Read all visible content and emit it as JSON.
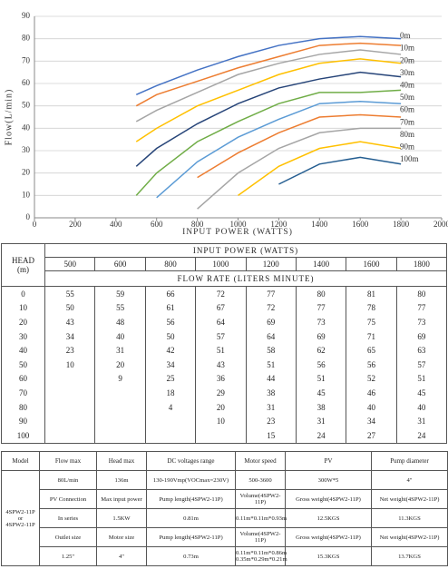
{
  "chart_data": {
    "type": "line",
    "x_label": "INPUT POWER (WATTS)",
    "y_label": "Flow(L/min)",
    "x": [
      500,
      600,
      800,
      1000,
      1200,
      1400,
      1600,
      1800
    ],
    "xlim": [
      0,
      2000
    ],
    "xticks": [
      0,
      200,
      400,
      600,
      800,
      1000,
      1200,
      1400,
      1600,
      1800,
      2000
    ],
    "ylim": [
      0,
      90
    ],
    "yticks": [
      0,
      10,
      20,
      30,
      40,
      50,
      60,
      70,
      80,
      90
    ],
    "grid": true,
    "series": [
      {
        "name": "0m",
        "color": "#4472c4",
        "values": [
          55,
          59,
          66,
          72,
          77,
          80,
          81,
          80
        ]
      },
      {
        "name": "10m",
        "color": "#ed7d31",
        "values": [
          50,
          55,
          61,
          67,
          72,
          77,
          78,
          77
        ]
      },
      {
        "name": "20m",
        "color": "#a5a5a5",
        "values": [
          43,
          48,
          56,
          64,
          69,
          73,
          75,
          73
        ]
      },
      {
        "name": "30m",
        "color": "#ffc000",
        "values": [
          34,
          40,
          50,
          57,
          64,
          69,
          71,
          69
        ]
      },
      {
        "name": "40m",
        "color": "#264478",
        "values": [
          23,
          31,
          42,
          51,
          58,
          62,
          65,
          63
        ]
      },
      {
        "name": "50m",
        "color": "#70ad47",
        "values": [
          10,
          20,
          34,
          43,
          51,
          56,
          56,
          57
        ]
      },
      {
        "name": "60m",
        "color": "#5b9bd5",
        "values": [
          null,
          9,
          25,
          36,
          44,
          51,
          52,
          51
        ]
      },
      {
        "name": "70m",
        "color": "#ed7d31",
        "values": [
          null,
          null,
          18,
          29,
          38,
          45,
          46,
          45
        ]
      },
      {
        "name": "80m",
        "color": "#a5a5a5",
        "values": [
          null,
          null,
          4,
          20,
          31,
          38,
          40,
          40
        ]
      },
      {
        "name": "90m",
        "color": "#ffc000",
        "values": [
          null,
          null,
          null,
          10,
          23,
          31,
          34,
          31
        ]
      },
      {
        "name": "100m",
        "color": "#255e91",
        "values": [
          null,
          null,
          null,
          null,
          15,
          24,
          27,
          24
        ]
      }
    ]
  },
  "flow_table": {
    "head_label": [
      "HEAD",
      "(m)"
    ],
    "title": "INPUT POWER (WATTS)",
    "subtitle": "FLOW RATE (LITERS MINUTE)",
    "heads": [
      0,
      10,
      20,
      30,
      40,
      50,
      60,
      70,
      80,
      90,
      100
    ]
  },
  "spec_table": {
    "header": [
      "Model",
      "Flow max",
      "Head max",
      "DC voltages range",
      "Motor speed",
      "PV",
      "Pump diameter"
    ],
    "model": [
      "4SPW2-11P",
      "or",
      "4SPW2-11P"
    ],
    "rows": [
      [
        [
          "80L/min"
        ],
        [
          "136m"
        ],
        [
          "130-190Vmp(VOCmax=230V)"
        ],
        [
          "500-3600"
        ],
        [
          "300W*5"
        ],
        [
          "4\""
        ]
      ],
      [
        [
          "PV Connection"
        ],
        [
          "Max input power"
        ],
        [
          "Pump length(4SPW2-11P)"
        ],
        [
          "Volume(4SPW2-11P)"
        ],
        [
          "Gross weight(4SPW2-11P)"
        ],
        [
          "Net weight(4SPW2-11P)"
        ]
      ],
      [
        [
          "In series"
        ],
        [
          "1.5KW"
        ],
        [
          "0.81m"
        ],
        [
          "0.11m*0.11m*0.93m"
        ],
        [
          "12.5KGS"
        ],
        [
          "11.3KGS"
        ]
      ],
      [
        [
          "Outlet size"
        ],
        [
          "Motor size"
        ],
        [
          "Pump length(4SPW2-11P)"
        ],
        [
          "Volume(4SPW2-11P)"
        ],
        [
          "Gross weight(4SPW2-11P)"
        ],
        [
          "Net weight(4SPW2-11P)"
        ]
      ],
      [
        [
          "1.25\""
        ],
        [
          "4\""
        ],
        [
          "0.73m"
        ],
        [
          "0.11m*0.11m*0.86m",
          "0.35m*0.29m*0.21m"
        ],
        [
          "15.3KGS"
        ],
        [
          "13.7KGS"
        ]
      ]
    ]
  }
}
